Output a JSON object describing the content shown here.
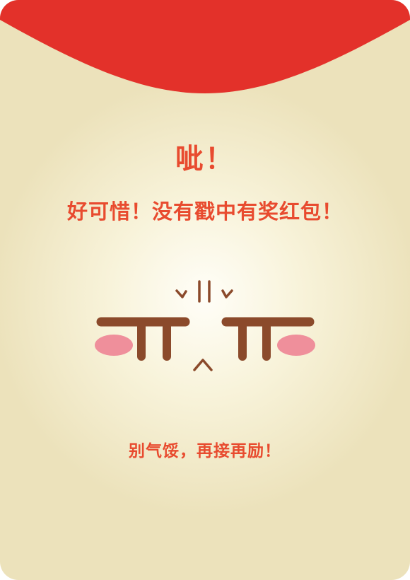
{
  "header": {
    "exclamation": "呲！",
    "message": "好可惜！没有戳中有奖红包！"
  },
  "footer": {
    "encouragement": "别气馁，再接再励！"
  },
  "face": {
    "emoticon": "sad-crying-face-icon"
  },
  "colors": {
    "flap": "#e3312a",
    "text": "#e84b2f",
    "face_lines": "#8b4a2b",
    "blush": "#ef8f9b",
    "background": "#f5eed0"
  }
}
